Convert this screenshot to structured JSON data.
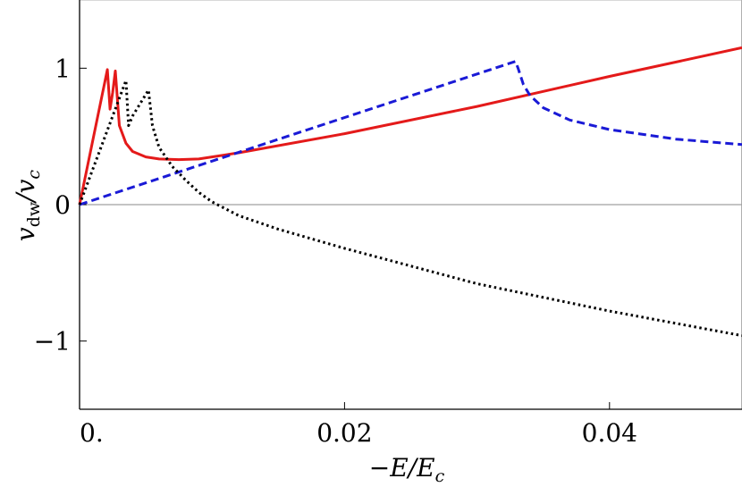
{
  "chart_data": {
    "type": "line",
    "title": "",
    "xlabel": "−E/E",
    "xlabel_sub": "c",
    "ylabel": "v",
    "ylabel_sub": "dw",
    "ylabel_den": "/v",
    "ylabel_den_sub": "c",
    "xlim": [
      0,
      0.05
    ],
    "ylim": [
      -1.5,
      1.5
    ],
    "x_ticks": [
      {
        "value": 0,
        "label": "0."
      },
      {
        "value": 0.02,
        "label": "0.02"
      },
      {
        "value": 0.04,
        "label": "0.04"
      }
    ],
    "y_ticks": [
      {
        "value": -1,
        "label": "−1"
      },
      {
        "value": 0,
        "label": "0"
      },
      {
        "value": 1,
        "label": "1"
      }
    ],
    "grid": false,
    "series": [
      {
        "color": "#e41a1a",
        "style": "solid",
        "x": [
          0,
          0.0021,
          0.0023,
          0.0025,
          0.0027,
          0.003,
          0.0035,
          0.004,
          0.005,
          0.006,
          0.0075,
          0.009,
          0.012,
          0.02,
          0.03,
          0.04,
          0.05
        ],
        "y": [
          0,
          0.99,
          0.7,
          0.82,
          0.98,
          0.58,
          0.45,
          0.39,
          0.35,
          0.335,
          0.33,
          0.335,
          0.38,
          0.52,
          0.72,
          0.94,
          1.15
        ]
      },
      {
        "color": "#1a1ad6",
        "style": "dashed",
        "x": [
          0,
          0.0329,
          0.0331,
          0.0335,
          0.034,
          0.035,
          0.037,
          0.04,
          0.045,
          0.05
        ],
        "y": [
          0,
          1.05,
          1.0,
          0.88,
          0.8,
          0.71,
          0.62,
          0.55,
          0.48,
          0.44
        ]
      },
      {
        "color": "#000000",
        "style": "dotted",
        "x": [
          0,
          0.0035,
          0.0037,
          0.004,
          0.0052,
          0.0055,
          0.006,
          0.007,
          0.008,
          0.009,
          0.01,
          0.012,
          0.015,
          0.02,
          0.03,
          0.04,
          0.05
        ],
        "y": [
          0,
          0.91,
          0.58,
          0.65,
          0.84,
          0.58,
          0.42,
          0.28,
          0.18,
          0.09,
          0.02,
          -0.08,
          -0.18,
          -0.32,
          -0.58,
          -0.78,
          -0.96
        ]
      }
    ]
  }
}
